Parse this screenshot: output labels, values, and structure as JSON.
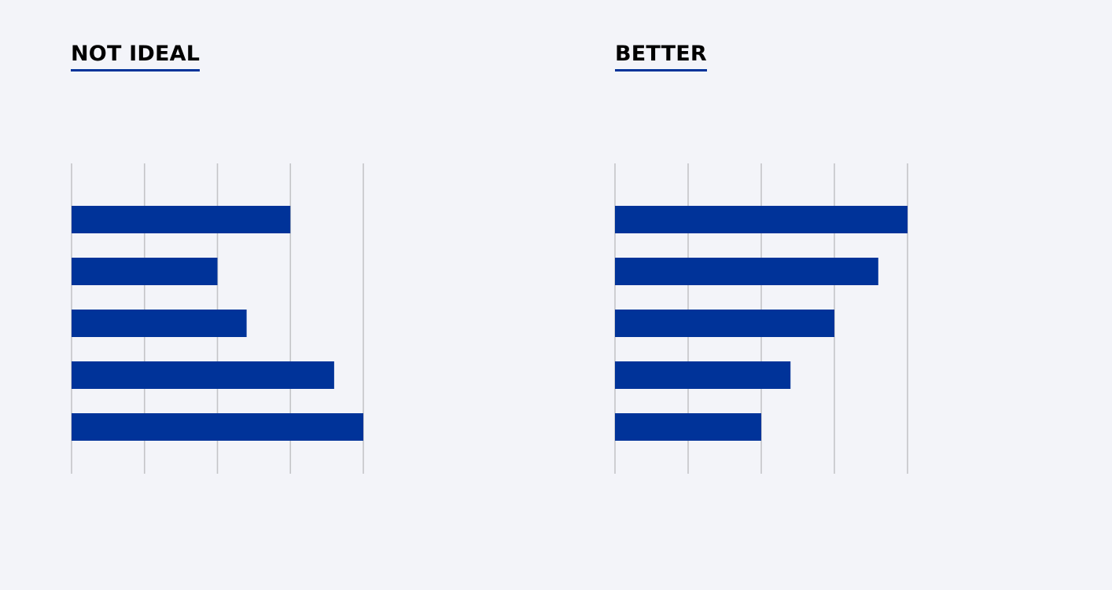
{
  "panels": {
    "left": {
      "heading": "NOT IDEAL"
    },
    "right": {
      "heading": "BETTER"
    }
  },
  "colors": {
    "background": "#f3f4f9",
    "bar": "#003399",
    "gridline": "#c4c4c8",
    "heading_underline": "#003399"
  },
  "chart_data": [
    {
      "type": "bar",
      "orientation": "horizontal",
      "title": "NOT IDEAL",
      "values": [
        3,
        2,
        2.4,
        3.6,
        4
      ],
      "xlim": [
        0,
        4
      ],
      "gridlines": [
        0,
        1,
        2,
        3,
        4
      ],
      "grid": true,
      "tick_labels": false,
      "category_labels": false
    },
    {
      "type": "bar",
      "orientation": "horizontal",
      "title": "BETTER",
      "values": [
        4,
        3.6,
        3,
        2.4,
        2
      ],
      "xlim": [
        0,
        4
      ],
      "gridlines": [
        0,
        1,
        2,
        3,
        4
      ],
      "grid": true,
      "tick_labels": false,
      "category_labels": false
    }
  ]
}
